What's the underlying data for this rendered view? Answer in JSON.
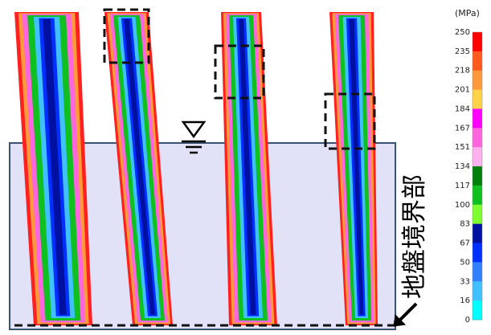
{
  "colorbar": {
    "unit": "(MPa)",
    "ticks": [
      "250",
      "235",
      "218",
      "201",
      "184",
      "167",
      "151",
      "134",
      "117",
      "100",
      "83",
      "67",
      "50",
      "33",
      "16",
      "0"
    ],
    "colors": [
      "#ff0000",
      "#ff5a1e",
      "#ff9a3c",
      "#ffd24a",
      "#ff00ff",
      "#ff66dd",
      "#ffb0ee",
      "#00800a",
      "#10c020",
      "#80ff30",
      "#0010a0",
      "#0030ff",
      "#3080ff",
      "#40c0ff",
      "#00ffff"
    ]
  },
  "annotation": "地盤境界部"
}
